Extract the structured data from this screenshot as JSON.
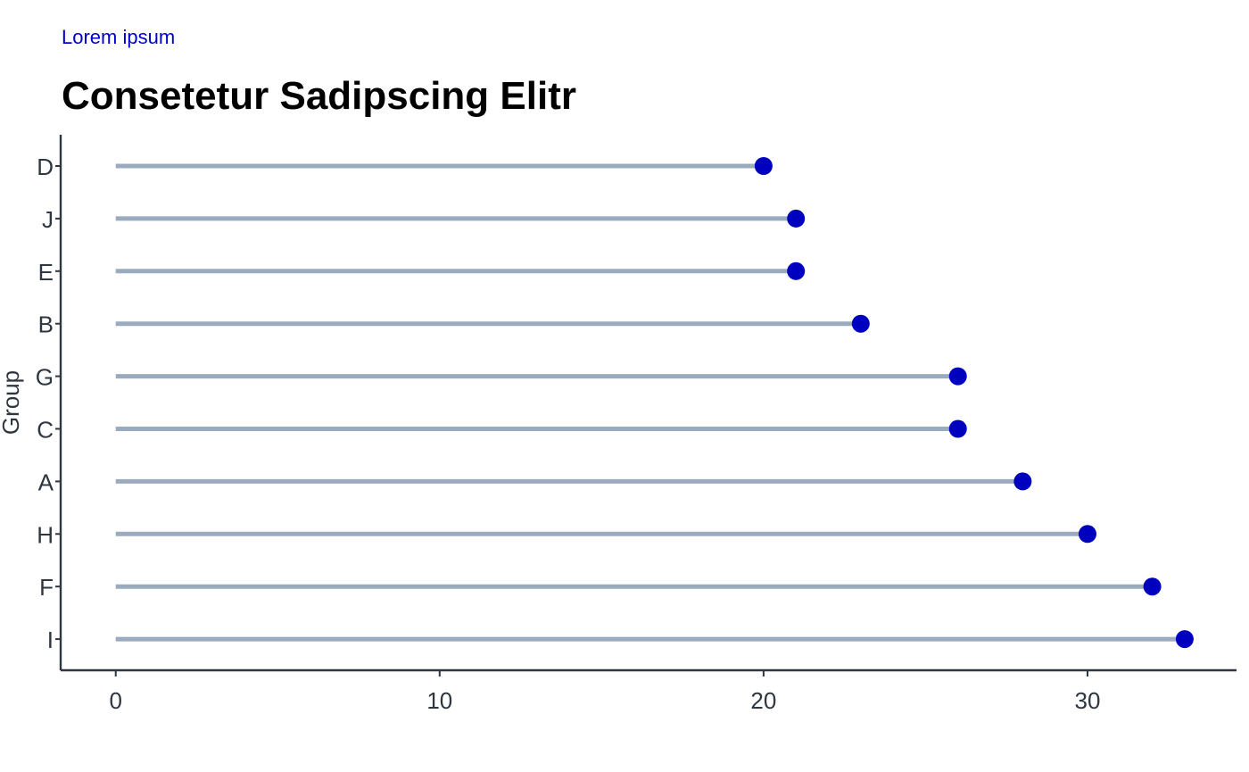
{
  "chart_data": {
    "type": "lollipop",
    "subtitle": "Lorem ipsum",
    "title": "Consetetur Sadipscing Elitr",
    "xlabel": "",
    "ylabel": "Group",
    "xlim": [
      -1.7,
      34.6
    ],
    "xticks": [
      0,
      10,
      20,
      30
    ],
    "categories": [
      "D",
      "J",
      "E",
      "B",
      "G",
      "C",
      "A",
      "H",
      "F",
      "I"
    ],
    "values": [
      20,
      21,
      21,
      23,
      26,
      26,
      28,
      30,
      32,
      33
    ],
    "colors": {
      "stem": "#9aabbf",
      "dot": "#0000bf",
      "subtitle": "#0000cc",
      "axis": "#2e3640"
    },
    "grid": false,
    "legend": "none"
  }
}
